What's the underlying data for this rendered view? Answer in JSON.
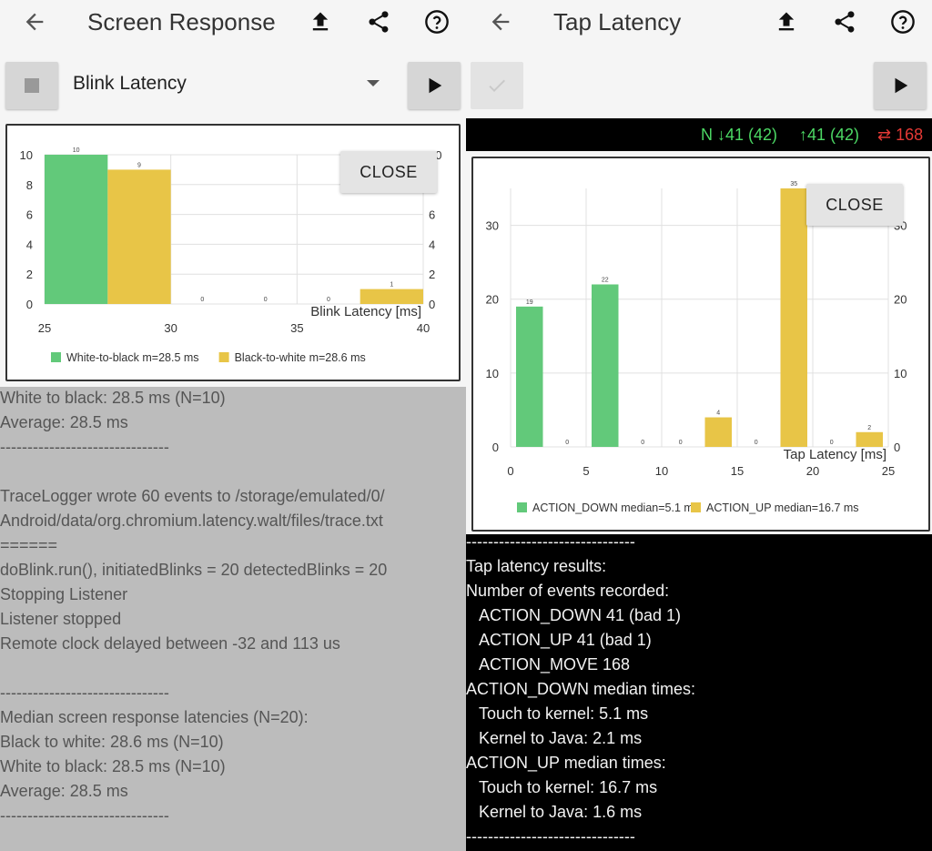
{
  "left": {
    "title": "Screen Response",
    "dropdown_value": "Blink Latency",
    "close_label": "CLOSE",
    "chart_data": {
      "type": "bar",
      "xlabel": "Blink Latency [ms]",
      "xlim": [
        25,
        40
      ],
      "ylim": [
        0,
        10
      ],
      "x_ticks": [
        "25",
        "30",
        "35",
        "40"
      ],
      "y_ticks": [
        "0",
        "2",
        "4",
        "6",
        "8",
        "10"
      ],
      "grid": true,
      "legend_position": "bottom",
      "bin_width_ms": 2.5,
      "series": [
        {
          "name": "White-to-black m=28.5 ms",
          "bins_start_ms": [
            25,
            30,
            35
          ],
          "values": [
            10,
            0,
            0
          ]
        },
        {
          "name": "Black-to-white m=28.6 ms",
          "bins_start_ms": [
            27.5,
            32.5,
            37.5
          ],
          "values": [
            9,
            0,
            1
          ]
        }
      ],
      "colors": [
        "#62c97a",
        "#e8c547"
      ]
    },
    "log_lines": [
      "White to black: 28.5 ms (N=10)",
      "Average: 28.5 ms",
      "-------------------------------",
      "",
      "TraceLogger wrote 60 events to /storage/emulated/0/",
      "Android/data/org.chromium.latency.walt/files/trace.txt",
      "======",
      "doBlink.run(), initiatedBlinks = 20 detectedBlinks = 20",
      "Stopping Listener",
      "Listener stopped",
      "Remote clock delayed between -32 and 113 us",
      "",
      "-------------------------------",
      "Median screen response latencies (N=20):",
      "Black to white: 28.6 ms (N=10)",
      "White to black: 28.5 ms (N=10)",
      "Average: 28.5 ms",
      "-------------------------------"
    ]
  },
  "right": {
    "title": "Tap Latency",
    "close_label": "CLOSE",
    "status": {
      "down": "N ↓41 (42)",
      "up": "↑41 (42)",
      "move": "⇄ 168"
    },
    "status_colors": {
      "green": "#4cd964",
      "red": "#e53935"
    },
    "chart_data": {
      "type": "bar",
      "xlabel": "Tap Latency [ms]",
      "xlim": [
        0,
        25
      ],
      "ylim": [
        0,
        35
      ],
      "x_ticks": [
        "0",
        "5",
        "10",
        "15",
        "20",
        "25"
      ],
      "y_ticks": [
        "0",
        "10",
        "20",
        "30"
      ],
      "grid": true,
      "legend_position": "bottom",
      "bin_width_ms": 2.5,
      "series": [
        {
          "name": "ACTION_DOWN median=5.1 ms",
          "bins_start_ms": [
            0,
            5,
            10,
            15,
            20
          ],
          "values": [
            19,
            22,
            0,
            0,
            0
          ]
        },
        {
          "name": "ACTION_UP median=16.7 ms",
          "bins_start_ms": [
            2.5,
            7.5,
            12.5,
            17.5,
            22.5
          ],
          "values": [
            0,
            0,
            4,
            35,
            2
          ]
        }
      ],
      "colors": [
        "#62c97a",
        "#e8c547"
      ]
    },
    "log_lines": [
      {
        "text": "-------------------------------",
        "indent": 0
      },
      {
        "text": "Tap latency results:",
        "indent": 0
      },
      {
        "text": "Number of events recorded:",
        "indent": 0
      },
      {
        "text": "ACTION_DOWN 41 (bad 1)",
        "indent": 1
      },
      {
        "text": "ACTION_UP 41 (bad 1)",
        "indent": 1
      },
      {
        "text": "ACTION_MOVE 168",
        "indent": 1
      },
      {
        "text": "ACTION_DOWN median times:",
        "indent": 0
      },
      {
        "text": "Touch to kernel: 5.1 ms",
        "indent": 1
      },
      {
        "text": "Kernel to Java: 2.1 ms",
        "indent": 1
      },
      {
        "text": "ACTION_UP median times:",
        "indent": 0
      },
      {
        "text": "Touch to kernel: 16.7 ms",
        "indent": 1
      },
      {
        "text": "Kernel to Java: 1.6 ms",
        "indent": 1
      },
      {
        "text": "-------------------------------",
        "indent": 0
      }
    ]
  }
}
